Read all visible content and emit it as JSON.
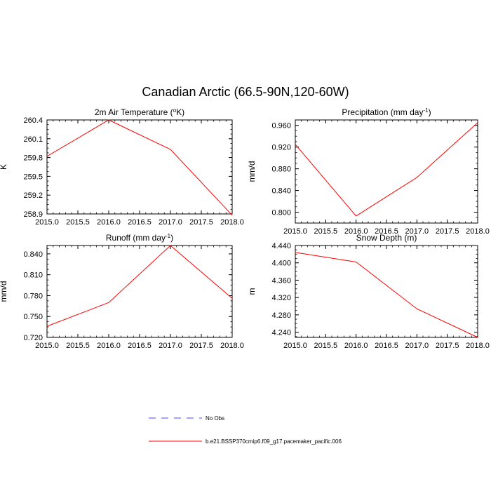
{
  "figure": {
    "title": "Canadian Arctic (66.5-90N,120-60W)",
    "line_color": "#ff0000",
    "obs_color": "#4a4aff"
  },
  "legend": {
    "obs_label": "No Obs",
    "model_label": "b.e21.BSSP370cmip6.f09_g17.pacemaker_pacific.006"
  },
  "chart_data": [
    {
      "type": "line",
      "title": "2m Air Temperature (",
      "title_sup": "o",
      "title_end": "K)",
      "ylabel": "K",
      "x": [
        2015.0,
        2016.0,
        2017.0,
        2018.0
      ],
      "xlim": [
        2015.0,
        2018.0
      ],
      "xticks": [
        2015.0,
        2015.5,
        2016.0,
        2016.5,
        2017.0,
        2017.5,
        2018.0
      ],
      "xtick_labels": [
        "2015.0",
        "2015.5",
        "2016.0",
        "2016.5",
        "2017.0",
        "2017.5",
        "2018.0"
      ],
      "ylim": [
        258.9,
        260.4
      ],
      "yticks": [
        258.9,
        259.2,
        259.5,
        259.8,
        260.1,
        260.4
      ],
      "ytick_labels": [
        "258.9",
        "259.2",
        "259.5",
        "259.8",
        "260.1",
        "260.4"
      ],
      "series": [
        {
          "name": "b.e21.BSSP370cmip6.f09_g17.pacemaker_pacific.006",
          "values": [
            259.82,
            260.4,
            259.93,
            258.88
          ]
        }
      ]
    },
    {
      "type": "line",
      "title": "Precipitation (mm day",
      "title_sup": "-1",
      "title_end": ")",
      "ylabel": "mm/d",
      "x": [
        2015.0,
        2016.0,
        2017.0,
        2018.0
      ],
      "xlim": [
        2015.0,
        2018.0
      ],
      "xticks": [
        2015.0,
        2015.5,
        2016.0,
        2016.5,
        2017.0,
        2017.5,
        2018.0
      ],
      "xtick_labels": [
        "2015.0",
        "2015.5",
        "2016.0",
        "2016.5",
        "2017.0",
        "2017.5",
        "2018.0"
      ],
      "ylim": [
        0.78,
        0.97
      ],
      "yticks": [
        0.8,
        0.84,
        0.88,
        0.92,
        0.96
      ],
      "ytick_labels": [
        "0.800",
        "0.840",
        "0.880",
        "0.920",
        "0.960"
      ],
      "series": [
        {
          "name": "b.e21.BSSP370cmip6.f09_g17.pacemaker_pacific.006",
          "values": [
            0.925,
            0.793,
            0.864,
            0.965
          ]
        }
      ]
    },
    {
      "type": "line",
      "title": "Runoff (mm day",
      "title_sup": "-1",
      "title_end": ")",
      "ylabel": "mm/d",
      "x": [
        2015.0,
        2016.0,
        2017.0,
        2018.0
      ],
      "xlim": [
        2015.0,
        2018.0
      ],
      "xticks": [
        2015.0,
        2015.5,
        2016.0,
        2016.5,
        2017.0,
        2017.5,
        2018.0
      ],
      "xtick_labels": [
        "2015.0",
        "2015.5",
        "2016.0",
        "2016.5",
        "2017.0",
        "2017.5",
        "2018.0"
      ],
      "ylim": [
        0.72,
        0.852
      ],
      "yticks": [
        0.72,
        0.75,
        0.78,
        0.81,
        0.84
      ],
      "ytick_labels": [
        "0.720",
        "0.750",
        "0.780",
        "0.810",
        "0.840"
      ],
      "series": [
        {
          "name": "b.e21.BSSP370cmip6.f09_g17.pacemaker_pacific.006",
          "values": [
            0.736,
            0.77,
            0.852,
            0.776
          ]
        }
      ]
    },
    {
      "type": "line",
      "title": "Snow Depth (m)",
      "title_sup": "",
      "title_end": "",
      "ylabel": "m",
      "x": [
        2015.0,
        2016.0,
        2017.0,
        2018.0
      ],
      "xlim": [
        2015.0,
        2018.0
      ],
      "xticks": [
        2015.0,
        2015.5,
        2016.0,
        2016.5,
        2017.0,
        2017.5,
        2018.0
      ],
      "xtick_labels": [
        "2015.0",
        "2015.5",
        "2016.0",
        "2016.5",
        "2017.0",
        "2017.5",
        "2018.0"
      ],
      "ylim": [
        4.228,
        4.44
      ],
      "yticks": [
        4.24,
        4.28,
        4.32,
        4.36,
        4.4,
        4.44
      ],
      "ytick_labels": [
        "4.240",
        "4.280",
        "4.320",
        "4.360",
        "4.400",
        "4.440"
      ],
      "series": [
        {
          "name": "b.e21.BSSP370cmip6.f09_g17.pacemaker_pacific.006",
          "values": [
            4.424,
            4.402,
            4.294,
            4.228
          ]
        }
      ]
    }
  ]
}
